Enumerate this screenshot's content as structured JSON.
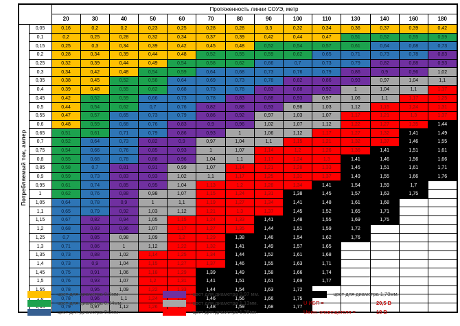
{
  "chart_data": {
    "type": "heatmap",
    "title": "Протяженность линии СОУЭ, метр",
    "ylabel": "Потребляемый ток, ампер",
    "columns": [
      "20",
      "30",
      "40",
      "50",
      "60",
      "70",
      "80",
      "90",
      "100",
      "110",
      "130",
      "140",
      "160",
      "180"
    ],
    "rows": [
      {
        "current": "0,05",
        "values": [
          "0,16",
          "0,2",
          "0,2",
          "0,23",
          "0,25",
          "0,28",
          "0,28",
          "0,3",
          "0,32",
          "0,34",
          "0,36",
          "0,37",
          "0,39",
          "0,42"
        ]
      },
      {
        "current": "0,1",
        "values": [
          "0,2",
          "0,25",
          "0,28",
          "0,32",
          "0,34",
          "0,37",
          "0,39",
          "0,42",
          "0,44",
          "0,47",
          "0,51",
          "0,52",
          "0,55",
          "0,59"
        ]
      },
      {
        "current": "0,15",
        "values": [
          "0,25",
          "0,3",
          "0,34",
          "0,39",
          "0,42",
          "0,45",
          "0,48",
          "0,52",
          "0,54",
          "0,57",
          "0,61",
          "0,64",
          "0,68",
          "0,73"
        ]
      },
      {
        "current": "0,2",
        "values": [
          "0,28",
          "0,34",
          "0,39",
          "0,44",
          "0,48",
          "0,52",
          "0,55",
          "0,59",
          "0,62",
          "0,65",
          "0,71",
          "0,73",
          "0,78",
          "0,83"
        ]
      },
      {
        "current": "0,25",
        "values": [
          "0,32",
          "0,39",
          "0,44",
          "0,49",
          "0,54",
          "0,58",
          "0,62",
          "0,66",
          "0,7",
          "0,73",
          "0,79",
          "0,82",
          "0,88",
          "0,93"
        ]
      },
      {
        "current": "0,3",
        "values": [
          "0,34",
          "0,42",
          "0,48",
          "0,54",
          "0,59",
          "0,64",
          "0,68",
          "0,73",
          "0,76",
          "0,79",
          "0,86",
          "0,9",
          "0,96",
          "1,02"
        ]
      },
      {
        "current": "0,35",
        "values": [
          "0,38",
          "0,45",
          "0,52",
          "0,58",
          "0,64",
          "0,69",
          "0,73",
          "0,78",
          "0,82",
          "0,86",
          "0,93",
          "0,97",
          "1,04",
          "1,1"
        ]
      },
      {
        "current": "0,4",
        "values": [
          "0,39",
          "0,48",
          "0,55",
          "0,62",
          "0,68",
          "0,73",
          "0,78",
          "0,83",
          "0,88",
          "0,92",
          "1",
          "1,04",
          "1,1",
          "1,17"
        ]
      },
      {
        "current": "0,45",
        "values": [
          "0,42",
          "0,52",
          "0,59",
          "0,66",
          "0,73",
          "0,78",
          "0,83",
          "0,88",
          "0,93",
          "0,97",
          "1,06",
          "1,1",
          "1,17",
          "1,25"
        ]
      },
      {
        "current": "0,5",
        "values": [
          "0,44",
          "0,54",
          "0,62",
          "0,7",
          "0,76",
          "0,82",
          "0,88",
          "0,93",
          "0,98",
          "1,03",
          "1,12",
          "1,15",
          "1,24",
          "1,31"
        ]
      },
      {
        "current": "0,55",
        "values": [
          "0,47",
          "0,57",
          "0,65",
          "0,73",
          "0,79",
          "0,86",
          "0,92",
          "0,97",
          "1,03",
          "1,07",
          "1,17",
          "1,21",
          "1,3",
          "1,37"
        ]
      },
      {
        "current": "0,6",
        "values": [
          "0,48",
          "0,59",
          "0,68",
          "0,76",
          "0,83",
          "0,9",
          "0,96",
          "1,02",
          "1,07",
          "1,12",
          "1,22",
          "1,27",
          "1,35",
          "1,44"
        ]
      },
      {
        "current": "0,65",
        "values": [
          "0,51",
          "0,61",
          "0,71",
          "0,79",
          "0,86",
          "0,93",
          "1",
          "1,06",
          "1,12",
          "1,17",
          "1,27",
          "1,32",
          "1,41",
          "1,49"
        ]
      },
      {
        "current": "0,7",
        "values": [
          "0,52",
          "0,64",
          "0,73",
          "0,82",
          "0,9",
          "0,97",
          "1,04",
          "1,1",
          "1,15",
          "1,21",
          "1,32",
          "1,37",
          "1,46",
          "1,55"
        ]
      },
      {
        "current": "0,75",
        "values": [
          "0,54",
          "0,66",
          "0,76",
          "0,85",
          "0,93",
          "1",
          "1,07",
          "1,14",
          "1,2",
          "1,26",
          "1,36",
          "1,41",
          "1,51",
          "1,61"
        ]
      },
      {
        "current": "0,8",
        "values": [
          "0,55",
          "0,68",
          "0,78",
          "0,88",
          "0,96",
          "1,04",
          "1,1",
          "1,17",
          "1,24",
          "1,3",
          "1,41",
          "1,46",
          "1,56",
          "1,66"
        ]
      },
      {
        "current": "0,85",
        "values": [
          "0,58",
          "0,7",
          "0,81",
          "0,91",
          "0,99",
          "1,07",
          "1,14",
          "1,21",
          "1,28",
          "1,33",
          "1,45",
          "1,51",
          "1,61",
          "1,71"
        ]
      },
      {
        "current": "0,9",
        "values": [
          "0,59",
          "0,73",
          "0,83",
          "0,93",
          "1,02",
          "1,1",
          "1,17",
          "1,25",
          "1,31",
          "1,37",
          "1,49",
          "1,55",
          "1,66",
          "1,76"
        ]
      },
      {
        "current": "0,95",
        "values": [
          "0,61",
          "0,74",
          "0,85",
          "0,95",
          "1,04",
          "1,13",
          "1,2",
          "1,28",
          "1,34",
          "1,41",
          "1,54",
          "1,59",
          "1,7",
          ""
        ]
      },
      {
        "current": "1",
        "values": [
          "0,62",
          "0,76",
          "0,88",
          "0,98",
          "1,07",
          "1,15",
          "1,24",
          "1,31",
          "1,38",
          "1,45",
          "1,57",
          "1,63",
          "1,75",
          ""
        ]
      },
      {
        "current": "1,05",
        "values": [
          "0,64",
          "0,78",
          "0,9",
          "1",
          "1,1",
          "1,19",
          "1,27",
          "1,34",
          "1,41",
          "1,48",
          "1,61",
          "1,68",
          "",
          ""
        ]
      },
      {
        "current": "1,1",
        "values": [
          "0,65",
          "0,79",
          "0,92",
          "1,03",
          "1,12",
          "1,21",
          "1,3",
          "1,37",
          "1,45",
          "1,52",
          "1,65",
          "1,71",
          "",
          ""
        ]
      },
      {
        "current": "1,15",
        "values": [
          "0,67",
          "0,82",
          "0,94",
          "1,05",
          "1,15",
          "1,24",
          "1,33",
          "1,41",
          "1,48",
          "1,55",
          "1,69",
          "1,75",
          "",
          ""
        ]
      },
      {
        "current": "1,2",
        "values": [
          "0,68",
          "0,83",
          "0,96",
          "1,07",
          "1,17",
          "1,27",
          "1,35",
          "1,44",
          "1,51",
          "1,59",
          "1,72",
          "",
          "",
          ""
        ]
      },
      {
        "current": "1,25",
        "values": [
          "0,7",
          "0,85",
          "0,98",
          "1,09",
          "1,2",
          "1,29",
          "1,38",
          "1,46",
          "1,54",
          "1,62",
          "1,76",
          "",
          "",
          ""
        ]
      },
      {
        "current": "1,3",
        "values": [
          "0,71",
          "0,86",
          "1",
          "1,12",
          "1,22",
          "1,32",
          "1,41",
          "1,49",
          "1,57",
          "1,65",
          "",
          "",
          "",
          ""
        ]
      },
      {
        "current": "1,35",
        "values": [
          "0,73",
          "0,88",
          "1,02",
          "1,14",
          "1,25",
          "1,34",
          "1,44",
          "1,52",
          "1,61",
          "1,68",
          "",
          "",
          "",
          ""
        ]
      },
      {
        "current": "1,4",
        "values": [
          "0,73",
          "0,9",
          "1,04",
          "1,15",
          "1,27",
          "1,37",
          "1,46",
          "1,55",
          "1,63",
          "1,71",
          "",
          "",
          "",
          ""
        ]
      },
      {
        "current": "1,45",
        "values": [
          "0,75",
          "0,91",
          "1,06",
          "1,18",
          "1,29",
          "1,39",
          "1,49",
          "1,58",
          "1,66",
          "1,74",
          "",
          "",
          "",
          ""
        ]
      },
      {
        "current": "1,5",
        "values": [
          "0,76",
          "0,93",
          "1,07",
          "1,2",
          "1,31",
          "1,41",
          "1,51",
          "1,61",
          "1,69",
          "1,77",
          "",
          "",
          "",
          ""
        ]
      },
      {
        "current": "1,55",
        "values": [
          "0,78",
          "0,95",
          "1,09",
          "1,22",
          "1,33",
          "1,44",
          "1,54",
          "1,63",
          "1,72",
          "",
          "",
          "",
          "",
          ""
        ]
      },
      {
        "current": "1,6",
        "values": [
          "0,78",
          "0,96",
          "1,1",
          "1,24",
          "1,35",
          "1,46",
          "1,56",
          "1,66",
          "1,75",
          "",
          "",
          "",
          "",
          ""
        ]
      },
      {
        "current": "1,65",
        "values": [
          "0,79",
          "0,97",
          "1,12",
          "1,26",
          "1,37",
          "1,48",
          "1,59",
          "1,68",
          "1,77",
          "",
          "",
          "",
          "",
          ""
        ]
      }
    ],
    "palette": {
      "yellow": "#FFC000",
      "green": "#1CA24E",
      "blue": "#2E75B6",
      "purple": "#7030A0",
      "gray": "#A6A6A6",
      "red": "#FF0000",
      "black": "#000000",
      "white": "#FFFFFF"
    },
    "text_colors": {
      "yellow": "#000000",
      "green": "#0b3b1e",
      "blue": "#0a1f3d",
      "purple": "#1a0a2e",
      "gray": "#000000",
      "red": "#7F1010",
      "black": "#FFFFFF",
      "white": "#000000"
    },
    "color_rules": {
      "thresholds": [
        {
          "max": 0.5,
          "color": "yellow"
        },
        {
          "max": 0.63,
          "color": "green"
        },
        {
          "max": 0.8,
          "color": "blue"
        },
        {
          "max": 0.965,
          "color": "purple"
        },
        {
          "max": 1.125,
          "color": "gray"
        },
        {
          "max": 1.375,
          "color": "red"
        },
        {
          "max": 99,
          "color": "black"
        }
      ]
    }
  },
  "legend": {
    "items": [
      {
        "color": "#FFC000",
        "label": "- цвет для диаметра 0,5мм."
      },
      {
        "color": "#1CA24E",
        "label": "- цвет для диаметра 0,64мм."
      },
      {
        "color": "#365F91",
        "label": "- цвет для диаметра 0,8мм."
      },
      {
        "color": "#7030A0",
        "label": "- цвет для диаметра 0,97 мм."
      },
      {
        "color": "#A6A6A6",
        "label": "- цвет для диаметра 1,13мм."
      },
      {
        "color": "#FF0000",
        "label": "- цвет для диаметра 1,38мм."
      },
      {
        "color": "#000000",
        "label": "- цвет для диаметра 1,78мм."
      }
    ]
  },
  "notes": [
    {
      "label": "U ИБП =",
      "value": "20,5 В"
    },
    {
      "label": "Uмин. оповещателя =",
      "value": "18 В"
    }
  ]
}
